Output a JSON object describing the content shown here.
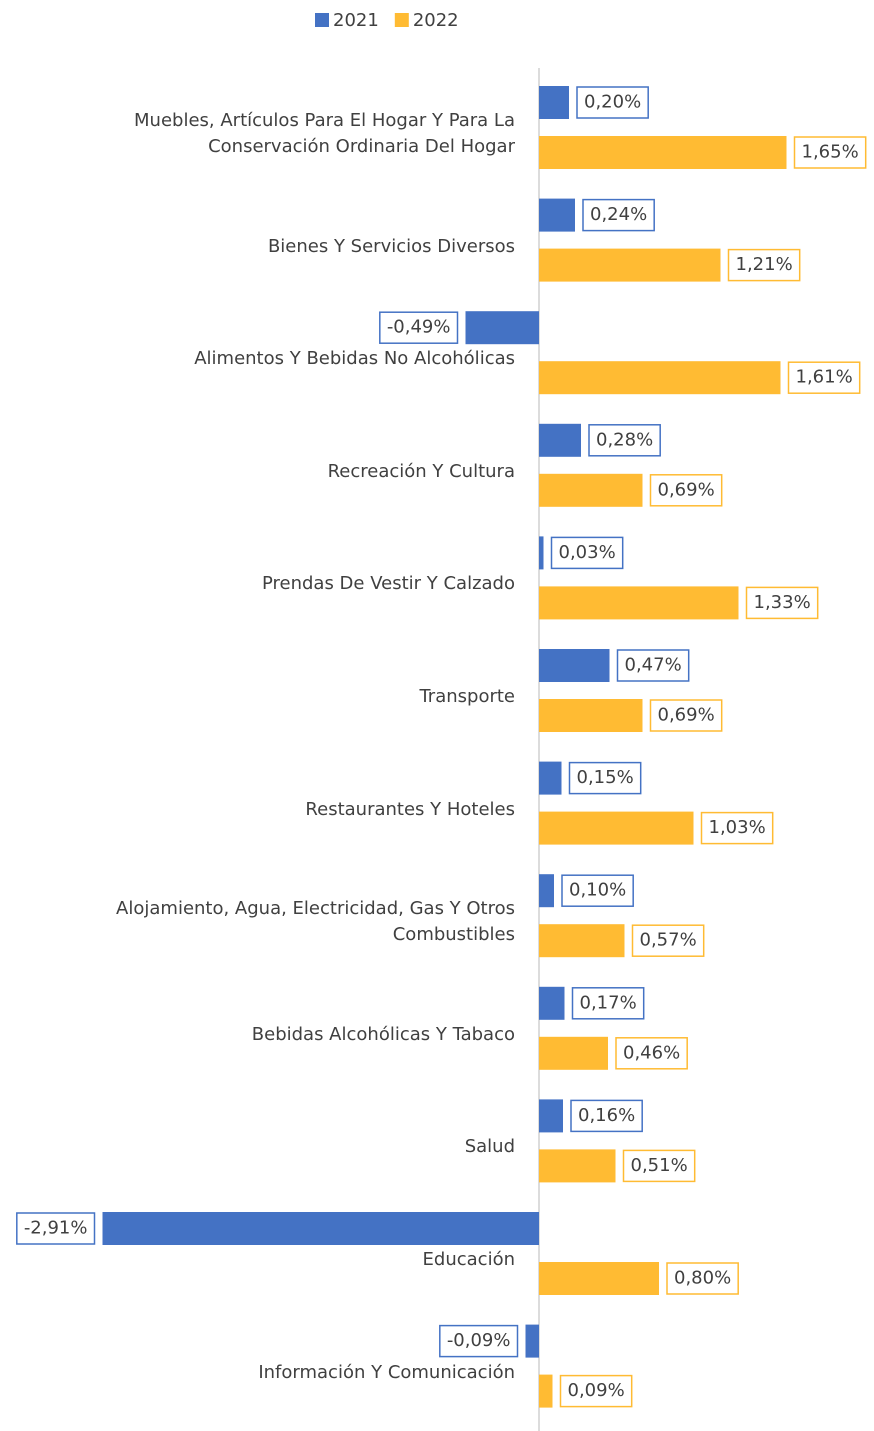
{
  "chart_data": {
    "type": "barh",
    "categories": [
      "Muebles, Artículos Para El Hogar Y Para La Conservación Ordinaria Del Hogar",
      "Bienes Y Servicios Diversos",
      "Alimentos Y Bebidas No Alcohólicas",
      "Recreación Y Cultura",
      "Prendas De Vestir Y Calzado",
      "Transporte",
      "Restaurantes Y Hoteles",
      "Alojamiento, Agua, Electricidad, Gas Y Otros Combustibles",
      "Bebidas Alcohólicas Y Tabaco",
      "Salud",
      "Educación",
      "Información Y Comunicación"
    ],
    "series": [
      {
        "name": "2021",
        "color": "#4472c4",
        "values": [
          0.2,
          0.24,
          -0.49,
          0.28,
          0.03,
          0.47,
          0.15,
          0.1,
          0.17,
          0.16,
          -2.91,
          -0.09
        ],
        "value_labels": [
          "0,20%",
          "0,24%",
          "-0,49%",
          "0,28%",
          "0,03%",
          "0,47%",
          "0,15%",
          "0,10%",
          "0,17%",
          "0,16%",
          "-2,91%",
          "-0,09%"
        ]
      },
      {
        "name": "2022",
        "color": "#ffbb33",
        "values": [
          1.65,
          1.21,
          1.61,
          0.69,
          1.33,
          0.69,
          1.03,
          0.57,
          0.46,
          0.51,
          0.8,
          0.09
        ],
        "value_labels": [
          "1,65%",
          "1,21%",
          "1,61%",
          "0,69%",
          "1,33%",
          "0,69%",
          "1,03%",
          "0,57%",
          "0,46%",
          "0,51%",
          "0,80%",
          "0,09%"
        ]
      }
    ],
    "legend": "top"
  }
}
